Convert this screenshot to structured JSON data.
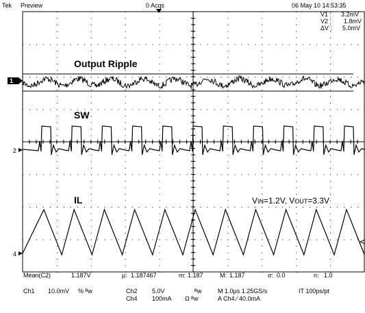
{
  "header": {
    "brand": "Tek",
    "mode": "Preview",
    "acqs": "0 Acqs",
    "datetime": "06 May 10 14:53:35"
  },
  "cursor_readout": {
    "v1_label": "V1 :",
    "v1_value": "3.2mV",
    "v2_label": "V2 :",
    "v2_value": "1.8mV",
    "dv_label": "ΔV :",
    "dv_value": "5.0mV"
  },
  "trace_labels": {
    "ripple": "Output Ripple",
    "sw": "SW",
    "il": "IL"
  },
  "channel_markers": {
    "ch1": "1",
    "ch2": "2",
    "ch4": "4"
  },
  "annotation": {
    "vin_prefix": "V",
    "vin_sub": "IN",
    "vin_val": "=1.2V, ",
    "vout_prefix": "V",
    "vout_sub": "OUT",
    "vout_val": "=3.3V"
  },
  "measurement": {
    "name": "Mean(C2)",
    "value": "1.187V",
    "mu_label": "µ:",
    "mu_value": "1.187467",
    "m_label": "m:",
    "m_value": "1.187",
    "M_label": "M:",
    "M_value": "1.187",
    "sigma_label": "σ:",
    "sigma_value": "0.0",
    "n_label": "n:",
    "n_value": "1.0"
  },
  "status": {
    "ch1": "Ch1",
    "ch1_scale": "10.0mV",
    "ch1_flags": "% ᴮw",
    "ch2": "Ch2",
    "ch2_scale": "5.0V",
    "ch2_flags": "ᴮw",
    "ch4": "Ch4",
    "ch4_scale": "100mA",
    "ch4_flags": "Ω ᴮw",
    "timebase": "M 1.0µs 1.25GS/s",
    "resolution": "IT 100ps/pt",
    "trigger": "A  Ch4  ⁄  40.0mA"
  },
  "colors": {
    "background": "#ffffff",
    "trace": "#000000",
    "grid": "#000000",
    "marker_fill": "#000000"
  }
}
